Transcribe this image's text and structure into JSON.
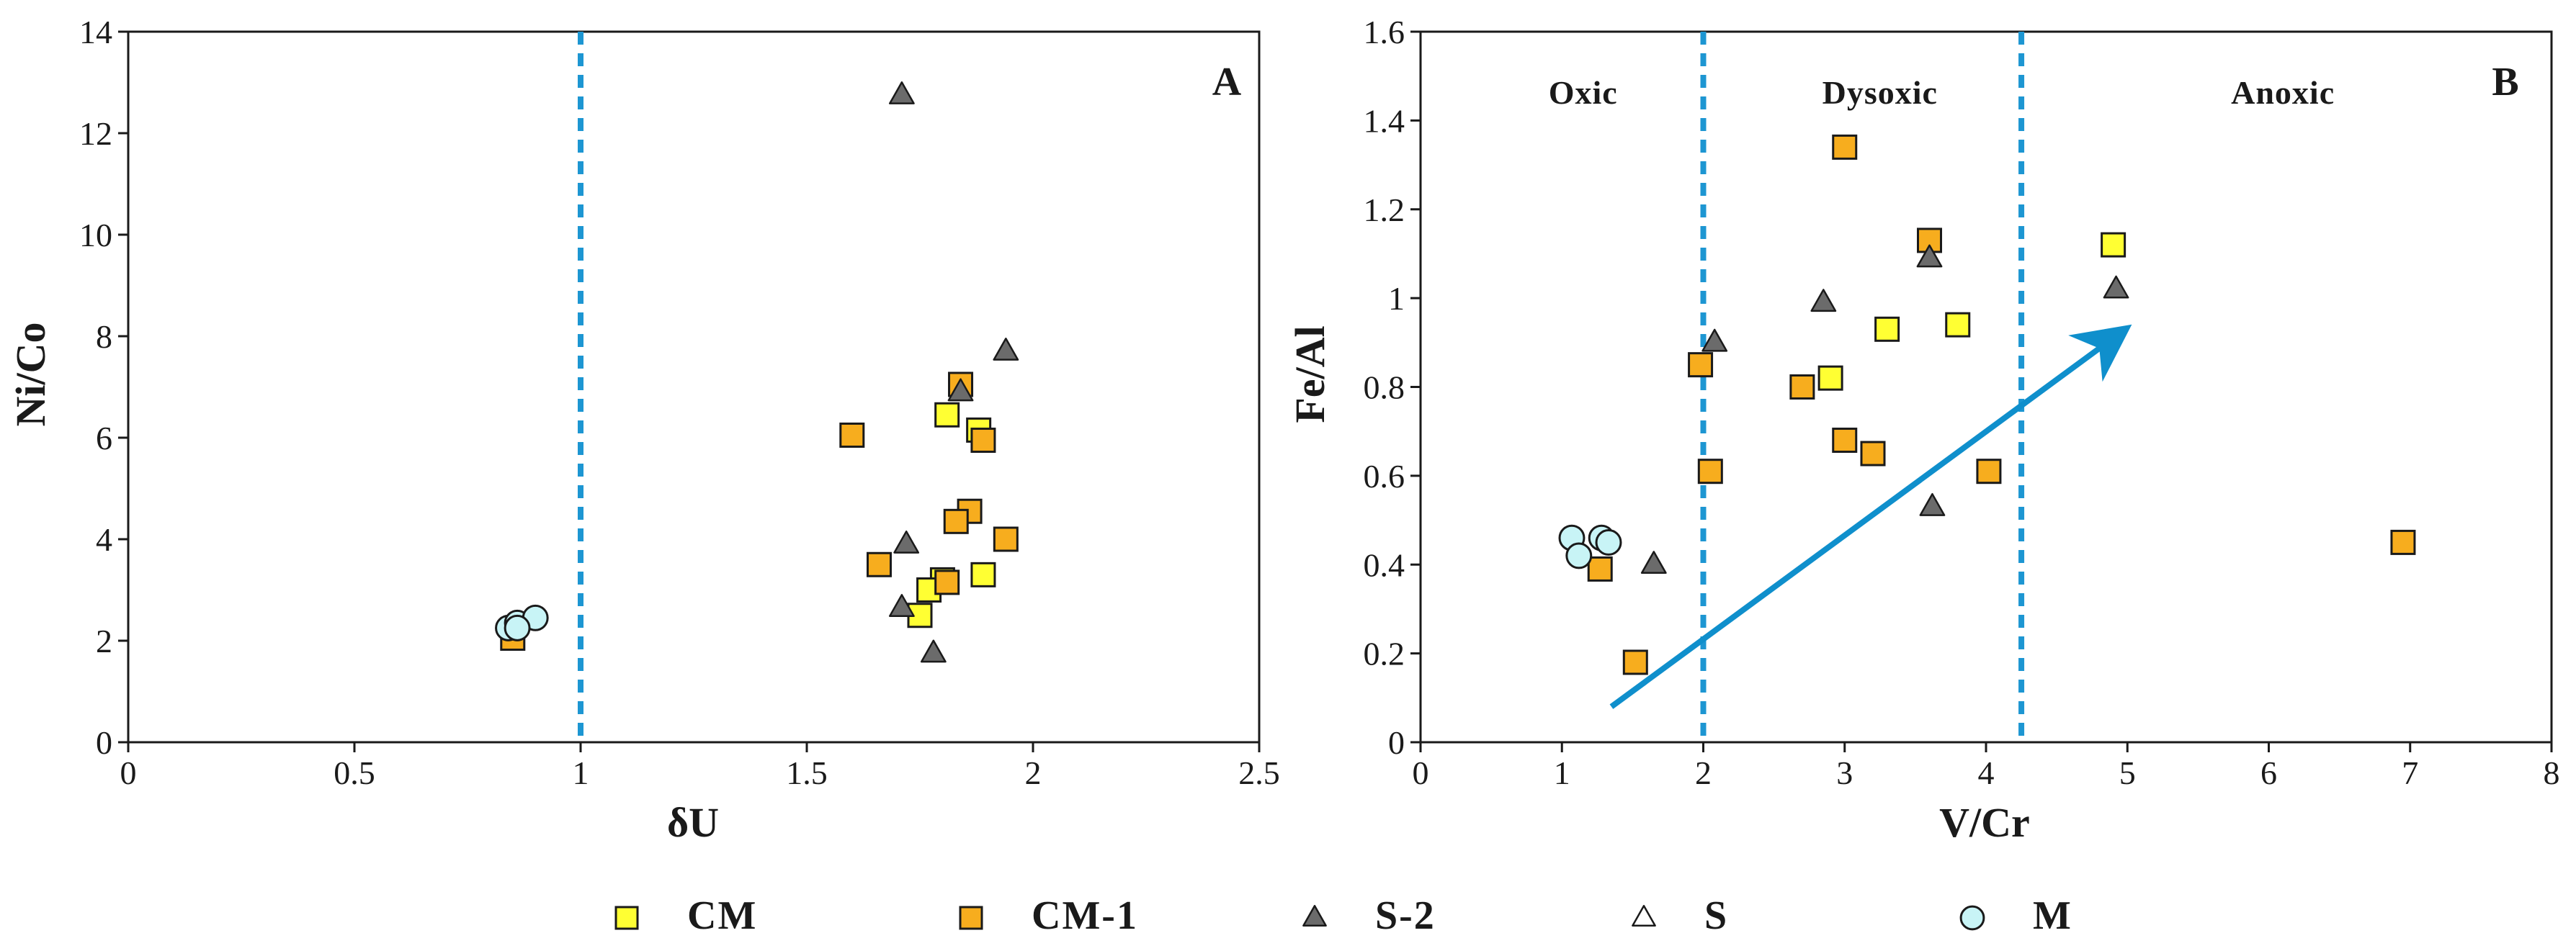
{
  "colors": {
    "CM": "#ffff33",
    "CM-1": "#f7ad1e",
    "S-2": "#6b6b6b",
    "S": "#ffffff",
    "M": "#c8f4f6",
    "divider": "#1d96d2",
    "arrow": "#0f8fcc",
    "axis": "#1a1a1a"
  },
  "legend": [
    {
      "series": "CM",
      "label": "CM",
      "marker": "square"
    },
    {
      "series": "CM-1",
      "label": "CM-1",
      "marker": "square"
    },
    {
      "series": "S-2",
      "label": "S-2",
      "marker": "triangle"
    },
    {
      "series": "S",
      "label": "S",
      "marker": "triangle"
    },
    {
      "series": "M",
      "label": "M",
      "marker": "circle"
    }
  ],
  "chart_data": [
    {
      "type": "scatter",
      "panel_label": "A",
      "title": "",
      "xlabel": "δU",
      "ylabel": "Ni/Co",
      "xlim": [
        0,
        2.5
      ],
      "ylim": [
        0,
        14
      ],
      "xticks": [
        0,
        0.5,
        1,
        1.5,
        2,
        2.5
      ],
      "xtick_labels": [
        "0",
        "0.5",
        "1",
        "1.5",
        "2",
        "2.5"
      ],
      "yticks": [
        0,
        2,
        4,
        6,
        8,
        10,
        12,
        14
      ],
      "ytick_labels": [
        "0",
        "2",
        "4",
        "6",
        "8",
        "10",
        "12",
        "14"
      ],
      "dividers": [
        1.0
      ],
      "zones": [],
      "arrow": null,
      "series": [
        {
          "name": "CM",
          "marker": "square",
          "points": [
            [
              1.81,
              6.45
            ],
            [
              1.88,
              6.15
            ],
            [
              1.89,
              3.3
            ],
            [
              1.8,
              3.2
            ],
            [
              1.77,
              3.0
            ],
            [
              1.75,
              2.5
            ]
          ]
        },
        {
          "name": "CM-1",
          "marker": "square",
          "points": [
            [
              0.85,
              2.05
            ],
            [
              1.6,
              6.05
            ],
            [
              1.84,
              7.05
            ],
            [
              1.89,
              5.95
            ],
            [
              1.86,
              4.55
            ],
            [
              1.83,
              4.35
            ],
            [
              1.94,
              4.0
            ],
            [
              1.66,
              3.5
            ],
            [
              1.81,
              3.15
            ]
          ]
        },
        {
          "name": "S-2",
          "marker": "triangle",
          "points": [
            [
              1.71,
              12.75
            ],
            [
              1.94,
              7.7
            ],
            [
              1.84,
              6.9
            ],
            [
              1.72,
              3.9
            ],
            [
              1.71,
              2.65
            ],
            [
              1.78,
              1.75
            ]
          ]
        },
        {
          "name": "M",
          "marker": "circle",
          "points": [
            [
              0.84,
              2.25
            ],
            [
              0.86,
              2.35
            ],
            [
              0.9,
              2.45
            ],
            [
              0.86,
              2.25
            ]
          ]
        }
      ]
    },
    {
      "type": "scatter",
      "panel_label": "B",
      "title": "",
      "xlabel": "V/Cr",
      "ylabel": "Fe/Al",
      "xlim": [
        0,
        8
      ],
      "ylim": [
        0,
        1.6
      ],
      "xticks": [
        0,
        1,
        2,
        3,
        4,
        5,
        6,
        7,
        8
      ],
      "xtick_labels": [
        "0",
        "1",
        "2",
        "3",
        "4",
        "5",
        "6",
        "7",
        "8"
      ],
      "yticks": [
        0,
        0.2,
        0.4,
        0.6,
        0.8,
        1.0,
        1.2,
        1.4,
        1.6
      ],
      "ytick_labels": [
        "0",
        "0.2",
        "0.4",
        "0.6",
        "0.8",
        "1",
        "1.2",
        "1.4",
        "1.6"
      ],
      "dividers": [
        2.0,
        4.25
      ],
      "zones": [
        {
          "label": "Oxic",
          "x": 1.15
        },
        {
          "label": "Dysoxic",
          "x": 3.25
        },
        {
          "label": "Anoxic",
          "x": 6.1
        }
      ],
      "arrow": {
        "from": [
          1.35,
          0.08
        ],
        "to": [
          4.9,
          0.91
        ]
      },
      "series": [
        {
          "name": "CM",
          "marker": "square",
          "points": [
            [
              4.9,
              1.12
            ],
            [
              3.8,
              0.94
            ],
            [
              3.3,
              0.93
            ],
            [
              2.9,
              0.82
            ]
          ]
        },
        {
          "name": "CM-1",
          "marker": "square",
          "points": [
            [
              3.0,
              1.34
            ],
            [
              3.6,
              1.13
            ],
            [
              1.98,
              0.85
            ],
            [
              2.7,
              0.8
            ],
            [
              3.0,
              0.68
            ],
            [
              3.2,
              0.65
            ],
            [
              4.02,
              0.61
            ],
            [
              2.05,
              0.61
            ],
            [
              6.95,
              0.45
            ],
            [
              1.27,
              0.39
            ],
            [
              1.52,
              0.18
            ]
          ]
        },
        {
          "name": "S-2",
          "marker": "triangle",
          "points": [
            [
              3.6,
              1.09
            ],
            [
              4.92,
              1.02
            ],
            [
              2.85,
              0.99
            ],
            [
              2.08,
              0.9
            ],
            [
              3.62,
              0.53
            ],
            [
              1.65,
              0.4
            ]
          ]
        },
        {
          "name": "M",
          "marker": "circle",
          "points": [
            [
              1.07,
              0.46
            ],
            [
              1.12,
              0.42
            ],
            [
              1.28,
              0.46
            ],
            [
              1.33,
              0.45
            ]
          ]
        }
      ]
    }
  ]
}
